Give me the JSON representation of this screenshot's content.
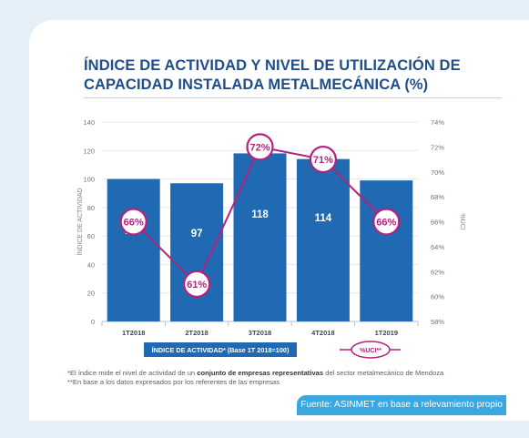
{
  "header": {
    "title_line1": "ÍNDICE DE ACTIVIDAD Y NIVEL DE UTILIZACIÓN DE",
    "title_line2": "CAPACIDAD INSTALADA METALMECÁNICA (%)"
  },
  "chart_data": {
    "type": "bar",
    "title": "ÍNDICE DE ACTIVIDAD Y NIVEL DE UTILIZACIÓN DE CAPACIDAD INSTALADA METALMECÁNICA (%)",
    "categories": [
      "1T2018",
      "2T2018",
      "3T2018",
      "4T2018",
      "1T2019"
    ],
    "ylabel": "ÍNDICE DE ACTIVIDAD",
    "y2label": "%UCI",
    "ylim": [
      0,
      140
    ],
    "y2lim": [
      58,
      74
    ],
    "yticks": [
      "0",
      "20",
      "40",
      "60",
      "80",
      "100",
      "120",
      "140"
    ],
    "y2ticks": [
      "58%",
      "60%",
      "62%",
      "64%",
      "66%",
      "68%",
      "70%",
      "72%",
      "74%"
    ],
    "grid": true,
    "legend_placement": "bottom",
    "series": [
      {
        "name": "ÍNDICE DE ACTIVIDAD* (Base 1T 2018=100)",
        "type": "bar",
        "axis": "left",
        "values": [
          100,
          97,
          118,
          114,
          99
        ],
        "labels": [
          "100",
          "97",
          "118",
          "114",
          "99"
        ],
        "color": "#1f6ab3"
      },
      {
        "name": "%UCI**",
        "type": "line",
        "axis": "right",
        "values": [
          66,
          61,
          72,
          71,
          66
        ],
        "labels": [
          "66%",
          "61%",
          "72%",
          "71%",
          "66%"
        ],
        "color": "#b5217f"
      }
    ],
    "legend": {
      "bar_label": "ÍNDICE DE ACTIVIDAD* (Base 1T 2018=100)",
      "line_label": "%UCI**"
    }
  },
  "notes": {
    "note1_prefix": "*El índice mide el nivel de actividad de un ",
    "note1_bold": "conjunto de empresas representativas",
    "note1_suffix": " del sector metalmecánico de Mendoza",
    "note2": "**En base a los datos expresados por los referentes de las empresas"
  },
  "footer": {
    "source": "Fuente: ASINMET en base a relevamiento propio"
  },
  "colors": {
    "background": "#e4eff8",
    "card": "#ffffff",
    "title": "#1f4e8c",
    "bar": "#1f6ab3",
    "line": "#b5217f",
    "source_banner": "#3aa7e0"
  }
}
